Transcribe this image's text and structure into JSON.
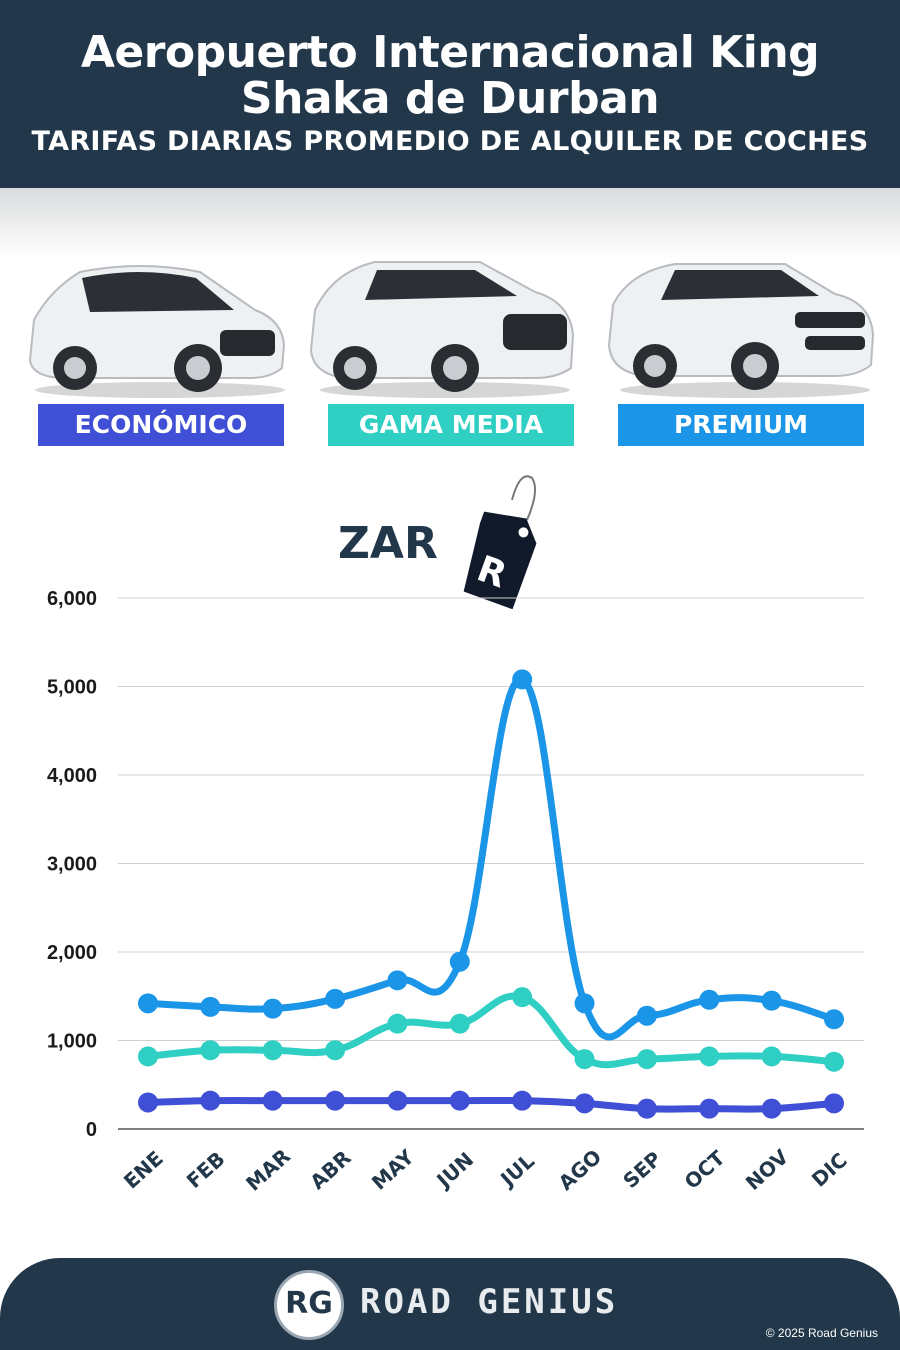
{
  "header": {
    "title_line1": "Aeropuerto Internacional King",
    "title_line2": "Shaka de Durban",
    "subtitle": "TARIFAS DIARIAS PROMEDIO DE ALQUILER DE COCHES"
  },
  "categories": [
    {
      "label": "ECONÓMICO",
      "color": "#3f4fd6"
    },
    {
      "label": "GAMA MEDIA",
      "color": "#2fcfc4"
    },
    {
      "label": "PREMIUM",
      "color": "#1a95e8"
    }
  ],
  "currency": {
    "label": "ZAR",
    "tag_letter": "R"
  },
  "chart_data": {
    "type": "line",
    "categories": [
      "ENE",
      "FEB",
      "MAR",
      "ABR",
      "MAY",
      "JUN",
      "JUL",
      "AGO",
      "SEP",
      "OCT",
      "NOV",
      "DIC"
    ],
    "series": [
      {
        "name": "ECONÓMICO",
        "color": "#3f4fd6",
        "values": [
          300,
          320,
          320,
          320,
          320,
          320,
          320,
          290,
          230,
          230,
          230,
          290
        ]
      },
      {
        "name": "GAMA MEDIA",
        "color": "#2fcfc4",
        "values": [
          820,
          890,
          890,
          890,
          1190,
          1190,
          1490,
          790,
          790,
          820,
          820,
          760
        ]
      },
      {
        "name": "PREMIUM",
        "color": "#1a95e8",
        "values": [
          1420,
          1380,
          1360,
          1470,
          1680,
          1890,
          5080,
          1420,
          1280,
          1460,
          1450,
          1240
        ]
      }
    ],
    "yticks": [
      "0",
      "1,000",
      "2,000",
      "3,000",
      "4,000",
      "5,000",
      "6,000"
    ],
    "ylim": [
      0,
      6000
    ],
    "grid": true
  },
  "footer": {
    "logo_text": "RG",
    "brand": "ROAD GENIUS",
    "copyright": "© 2025 Road Genius"
  }
}
